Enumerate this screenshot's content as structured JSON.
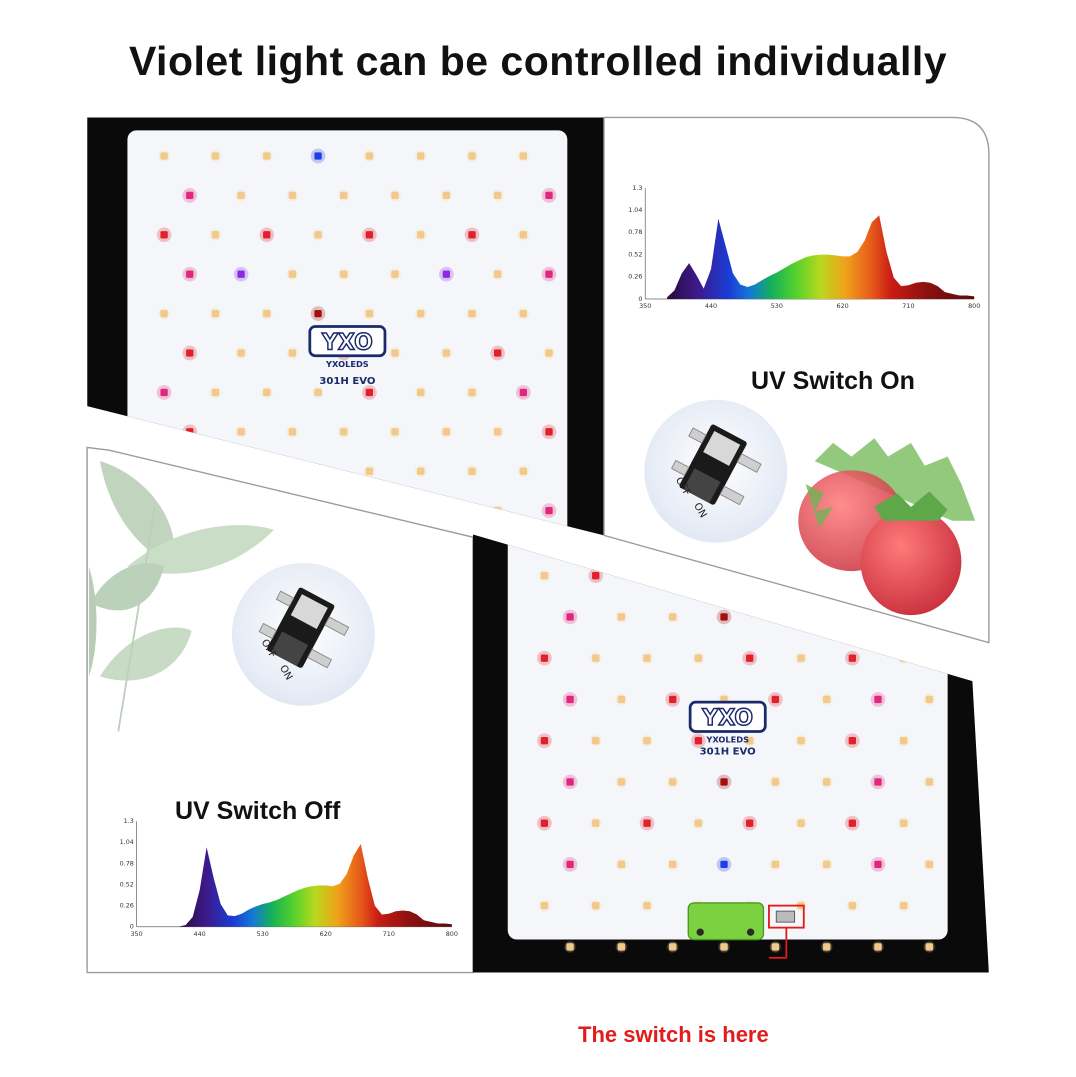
{
  "headline": "Violet light can be controlled individually",
  "panel_top": {
    "caption": "UV Switch On",
    "switch_labels": {
      "off": "OFF",
      "on": "ON"
    }
  },
  "panel_bottom": {
    "caption": "UV Switch Off",
    "switch_labels": {
      "off": "OFF",
      "on": "ON"
    },
    "switch_note": "The switch is here"
  },
  "board": {
    "logo": "YXO",
    "brand": "YXOLEDS",
    "model": "301H EVO"
  },
  "colors": {
    "warm_led": "#f2c98a",
    "red_led": "#e0202a",
    "magenta_led": "#e0267e",
    "violet_led": "#8a2be2",
    "blue_led": "#1f3fe6",
    "deep_red_led": "#a4100e",
    "note_red": "#e31b1b",
    "switch_body": "#7bd13f"
  },
  "chart_data": [
    {
      "type": "area",
      "title": "",
      "xlabel": "",
      "ylabel": "",
      "x_ticks": [
        "350",
        "440",
        "530",
        "620",
        "710",
        "800"
      ],
      "y_ticks": [
        "0",
        "0.26",
        "0.52",
        "0.78",
        "1.04",
        "1.3"
      ],
      "xlim": [
        350,
        800
      ],
      "ylim": [
        0,
        1.3
      ],
      "series": [
        {
          "x": [
            380,
            390,
            400,
            410,
            420,
            430,
            440,
            450,
            460,
            470,
            480,
            490,
            500,
            510,
            520,
            530,
            540,
            550,
            560,
            570,
            580,
            590,
            600,
            610,
            620,
            630,
            640,
            650,
            660,
            670,
            680,
            690,
            700,
            710,
            720,
            730,
            740,
            750,
            760,
            770,
            780,
            790,
            800
          ],
          "y": [
            0.02,
            0.1,
            0.3,
            0.42,
            0.28,
            0.12,
            0.35,
            0.94,
            0.62,
            0.3,
            0.17,
            0.14,
            0.17,
            0.22,
            0.27,
            0.31,
            0.36,
            0.41,
            0.45,
            0.49,
            0.51,
            0.52,
            0.52,
            0.51,
            0.5,
            0.5,
            0.55,
            0.68,
            0.9,
            0.98,
            0.55,
            0.25,
            0.15,
            0.16,
            0.19,
            0.2,
            0.19,
            0.15,
            0.08,
            0.06,
            0.04,
            0.04,
            0.03
          ]
        }
      ]
    },
    {
      "type": "area",
      "title": "",
      "xlabel": "",
      "ylabel": "",
      "x_ticks": [
        "350",
        "440",
        "530",
        "620",
        "710",
        "800"
      ],
      "y_ticks": [
        "0",
        "0.26",
        "0.52",
        "0.78",
        "1.04",
        "1.3"
      ],
      "xlim": [
        350,
        800
      ],
      "ylim": [
        0,
        1.3
      ],
      "series": [
        {
          "x": [
            410,
            420,
            430,
            440,
            450,
            460,
            470,
            480,
            490,
            500,
            510,
            520,
            530,
            540,
            550,
            560,
            570,
            580,
            590,
            600,
            610,
            620,
            630,
            640,
            650,
            660,
            670,
            680,
            690,
            700,
            710,
            720,
            730,
            740,
            750,
            760,
            770,
            780,
            790,
            800
          ],
          "y": [
            0.0,
            0.02,
            0.12,
            0.45,
            0.98,
            0.6,
            0.28,
            0.14,
            0.13,
            0.16,
            0.21,
            0.25,
            0.28,
            0.3,
            0.33,
            0.37,
            0.41,
            0.45,
            0.48,
            0.5,
            0.51,
            0.51,
            0.5,
            0.53,
            0.65,
            0.88,
            1.02,
            0.6,
            0.26,
            0.15,
            0.16,
            0.19,
            0.2,
            0.19,
            0.15,
            0.08,
            0.06,
            0.04,
            0.04,
            0.03
          ]
        }
      ]
    }
  ]
}
